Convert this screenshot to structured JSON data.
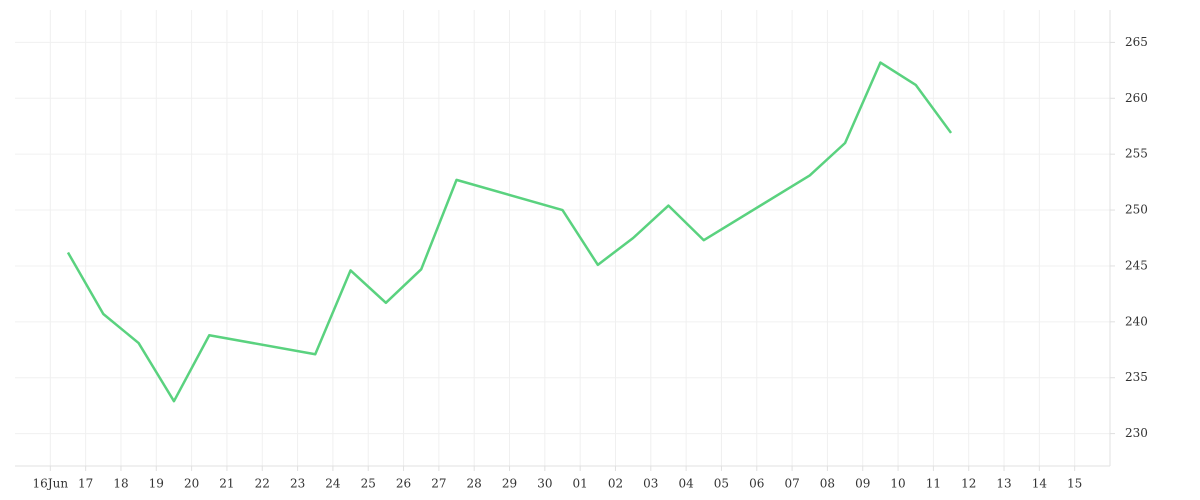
{
  "chart_data": {
    "type": "line",
    "x": [
      0.5,
      1.5,
      2.5,
      3.5,
      4.5,
      7.5,
      8.5,
      9.5,
      10.5,
      11.5,
      14.5,
      15.5,
      16.5,
      17.5,
      18.5,
      21.5,
      22.5,
      23.5,
      24.5,
      25.5
    ],
    "series": [
      {
        "color": "#5ad27f",
        "values": [
          246.2,
          240.7,
          238.1,
          232.9,
          238.8,
          237.1,
          244.6,
          241.7,
          244.7,
          252.7,
          250.0,
          245.1,
          247.5,
          250.4,
          247.3,
          253.1,
          256.0,
          263.2,
          261.2,
          256.9
        ]
      }
    ],
    "xlim": [
      -1,
      30
    ],
    "xticks": [
      {
        "value": 0,
        "label": "16Jun"
      },
      {
        "value": 1,
        "label": "17"
      },
      {
        "value": 2,
        "label": "18"
      },
      {
        "value": 3,
        "label": "19"
      },
      {
        "value": 4,
        "label": "20"
      },
      {
        "value": 5,
        "label": "21"
      },
      {
        "value": 6,
        "label": "22"
      },
      {
        "value": 7,
        "label": "23"
      },
      {
        "value": 8,
        "label": "24"
      },
      {
        "value": 9,
        "label": "25"
      },
      {
        "value": 10,
        "label": "26"
      },
      {
        "value": 11,
        "label": "27"
      },
      {
        "value": 12,
        "label": "28"
      },
      {
        "value": 13,
        "label": "29"
      },
      {
        "value": 14,
        "label": "30"
      },
      {
        "value": 15,
        "label": "01"
      },
      {
        "value": 16,
        "label": "02"
      },
      {
        "value": 17,
        "label": "03"
      },
      {
        "value": 18,
        "label": "04"
      },
      {
        "value": 19,
        "label": "05"
      },
      {
        "value": 20,
        "label": "06"
      },
      {
        "value": 21,
        "label": "07"
      },
      {
        "value": 22,
        "label": "08"
      },
      {
        "value": 23,
        "label": "09"
      },
      {
        "value": 24,
        "label": "10"
      },
      {
        "value": 25,
        "label": "11"
      },
      {
        "value": 26,
        "label": "12"
      },
      {
        "value": 27,
        "label": "13"
      },
      {
        "value": 28,
        "label": "14"
      },
      {
        "value": 29,
        "label": "15"
      }
    ],
    "ylim": [
      227.1,
      267.9
    ],
    "yticks": [
      230,
      235,
      240,
      245,
      250,
      255,
      260,
      265
    ],
    "grid": true
  }
}
